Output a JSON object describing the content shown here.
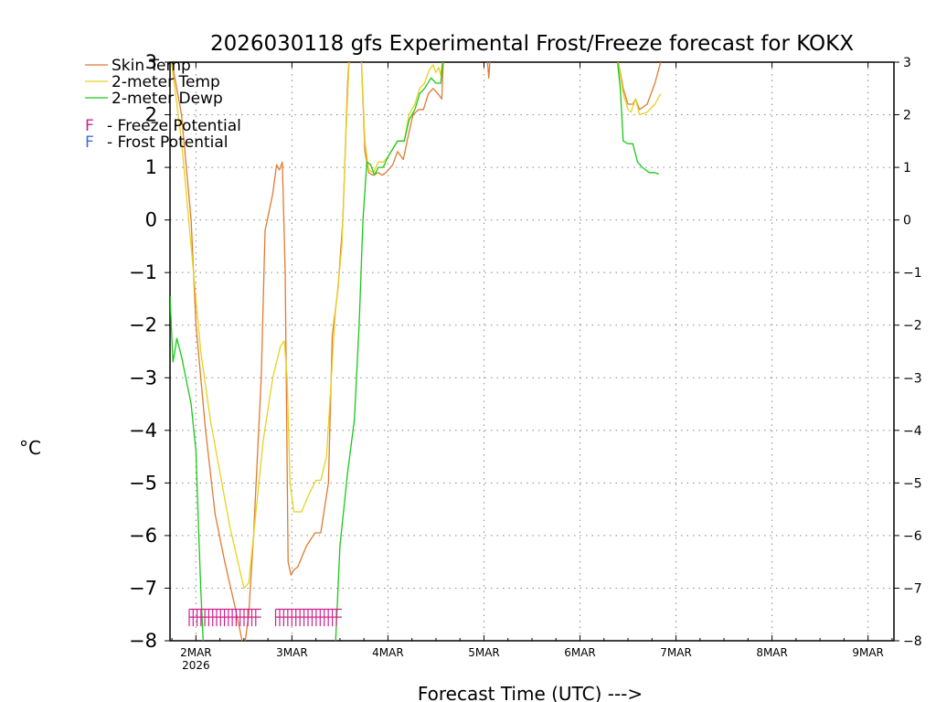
{
  "chart_data": {
    "type": "line",
    "title": "2026030118 gfs Experimental Frost/Freeze forecast for KOKX",
    "ylabel": "°C",
    "xlabel": "Forecast Time (UTC) --->",
    "ylim": [
      -8,
      3
    ],
    "xlim": [
      -0.27,
      7.27
    ],
    "y_ticks": [
      3,
      2,
      1,
      0,
      -1,
      -2,
      -3,
      -4,
      -5,
      -6,
      -7,
      -8
    ],
    "x_ticks": [
      {
        "x": 0,
        "label": "2MAR",
        "sub": "2026"
      },
      {
        "x": 1,
        "label": "3MAR",
        "sub": ""
      },
      {
        "x": 2,
        "label": "4MAR",
        "sub": ""
      },
      {
        "x": 3,
        "label": "5MAR",
        "sub": ""
      },
      {
        "x": 4,
        "label": "6MAR",
        "sub": ""
      },
      {
        "x": 5,
        "label": "7MAR",
        "sub": ""
      },
      {
        "x": 6,
        "label": "8MAR",
        "sub": ""
      },
      {
        "x": 7,
        "label": "9MAR",
        "sub": ""
      }
    ],
    "grid": true,
    "legend": [
      {
        "name": "Skin Temp",
        "color": "#e07b30"
      },
      {
        "name": "2-meter Temp",
        "color": "#e6d21e"
      },
      {
        "name": "2-meter Dewp",
        "color": "#19c919"
      }
    ],
    "potential_legend": [
      {
        "marker": "F",
        "text": "- Freeze Potential",
        "color": "#d0208c"
      },
      {
        "marker": "F",
        "text": "- Frost Potential",
        "color": "#4169e1"
      }
    ],
    "series": [
      {
        "name": "Skin Temp",
        "color": "#e07b30",
        "points": [
          [
            -0.27,
            3.2
          ],
          [
            -0.22,
            2.7
          ],
          [
            -0.15,
            2.0
          ],
          [
            -0.05,
            0.0
          ],
          [
            0.0,
            -2.0
          ],
          [
            0.1,
            -4.0
          ],
          [
            0.2,
            -5.6
          ],
          [
            0.3,
            -6.5
          ],
          [
            0.4,
            -7.3
          ],
          [
            0.47,
            -7.9
          ],
          [
            0.5,
            -8.2
          ],
          [
            0.55,
            -7.5
          ],
          [
            0.6,
            -6.0
          ],
          [
            0.68,
            -3.0
          ],
          [
            0.72,
            -0.2
          ],
          [
            0.8,
            0.5
          ],
          [
            0.84,
            1.05
          ],
          [
            0.87,
            0.95
          ],
          [
            0.9,
            1.1
          ],
          [
            0.93,
            -1.0
          ],
          [
            0.96,
            -6.5
          ],
          [
            0.99,
            -6.75
          ],
          [
            1.02,
            -6.65
          ],
          [
            1.06,
            -6.6
          ],
          [
            1.15,
            -6.2
          ],
          [
            1.24,
            -5.95
          ],
          [
            1.3,
            -5.95
          ],
          [
            1.38,
            -5.0
          ],
          [
            1.42,
            -2.2
          ],
          [
            1.48,
            -1.3
          ],
          [
            1.53,
            0.0
          ],
          [
            1.58,
            2.6
          ],
          [
            1.6,
            3.2
          ],
          [
            1.66,
            3.2
          ],
          [
            1.72,
            3.2
          ],
          [
            1.76,
            1.3
          ],
          [
            1.8,
            0.9
          ],
          [
            1.84,
            0.85
          ],
          [
            1.9,
            0.9
          ],
          [
            1.94,
            0.85
          ],
          [
            1.98,
            0.9
          ],
          [
            2.05,
            1.05
          ],
          [
            2.1,
            1.3
          ],
          [
            2.16,
            1.15
          ],
          [
            2.2,
            1.5
          ],
          [
            2.26,
            2.0
          ],
          [
            2.32,
            2.1
          ],
          [
            2.37,
            2.1
          ],
          [
            2.42,
            2.4
          ],
          [
            2.47,
            2.5
          ],
          [
            2.52,
            2.4
          ],
          [
            2.56,
            2.3
          ],
          [
            2.58,
            3.2
          ],
          [
            3.03,
            3.2
          ],
          [
            3.05,
            2.7
          ],
          [
            3.07,
            3.2
          ],
          [
            4.38,
            3.2
          ],
          [
            4.45,
            2.5
          ],
          [
            4.5,
            2.2
          ],
          [
            4.55,
            2.2
          ],
          [
            4.58,
            2.3
          ],
          [
            4.62,
            2.1
          ],
          [
            4.7,
            2.2
          ],
          [
            4.78,
            2.6
          ],
          [
            4.84,
            3.0
          ]
        ]
      },
      {
        "name": "2-meter Temp",
        "color": "#e6d21e",
        "points": [
          [
            -0.27,
            3.2
          ],
          [
            -0.22,
            2.5
          ],
          [
            -0.15,
            1.5
          ],
          [
            -0.05,
            -0.5
          ],
          [
            0.05,
            -2.5
          ],
          [
            0.15,
            -3.8
          ],
          [
            0.25,
            -4.8
          ],
          [
            0.35,
            -5.8
          ],
          [
            0.45,
            -6.6
          ],
          [
            0.5,
            -7.0
          ],
          [
            0.55,
            -6.9
          ],
          [
            0.6,
            -6.0
          ],
          [
            0.7,
            -4.2
          ],
          [
            0.8,
            -3.0
          ],
          [
            0.88,
            -2.4
          ],
          [
            0.92,
            -2.3
          ],
          [
            0.95,
            -3.0
          ],
          [
            0.98,
            -5.0
          ],
          [
            1.02,
            -5.55
          ],
          [
            1.1,
            -5.55
          ],
          [
            1.18,
            -5.2
          ],
          [
            1.25,
            -4.95
          ],
          [
            1.3,
            -4.95
          ],
          [
            1.36,
            -4.5
          ],
          [
            1.45,
            -1.8
          ],
          [
            1.52,
            -0.5
          ],
          [
            1.56,
            1.5
          ],
          [
            1.6,
            3.2
          ],
          [
            1.67,
            3.2
          ],
          [
            1.72,
            3.2
          ],
          [
            1.76,
            1.5
          ],
          [
            1.8,
            0.95
          ],
          [
            1.85,
            0.9
          ],
          [
            1.9,
            1.1
          ],
          [
            1.95,
            1.1
          ],
          [
            2.0,
            1.2
          ],
          [
            2.05,
            1.35
          ],
          [
            2.1,
            1.5
          ],
          [
            2.17,
            1.5
          ],
          [
            2.22,
            2.0
          ],
          [
            2.28,
            2.2
          ],
          [
            2.33,
            2.5
          ],
          [
            2.38,
            2.6
          ],
          [
            2.43,
            2.85
          ],
          [
            2.47,
            2.95
          ],
          [
            2.5,
            2.8
          ],
          [
            2.53,
            2.9
          ],
          [
            2.55,
            2.75
          ],
          [
            2.58,
            3.2
          ],
          [
            4.38,
            3.2
          ],
          [
            4.45,
            2.4
          ],
          [
            4.5,
            2.1
          ],
          [
            4.53,
            2.05
          ],
          [
            4.58,
            2.3
          ],
          [
            4.62,
            2.0
          ],
          [
            4.7,
            2.05
          ],
          [
            4.78,
            2.2
          ],
          [
            4.84,
            2.4
          ]
        ]
      },
      {
        "name": "2-meter Dewp",
        "color": "#19c919",
        "points": [
          [
            -0.27,
            -1.45
          ],
          [
            -0.24,
            -2.7
          ],
          [
            -0.22,
            -2.5
          ],
          [
            -0.2,
            -2.25
          ],
          [
            -0.15,
            -2.6
          ],
          [
            -0.05,
            -3.5
          ],
          [
            0.0,
            -4.4
          ],
          [
            0.02,
            -5.5
          ],
          [
            0.05,
            -7.0
          ],
          [
            0.08,
            -8.2
          ],
          [
            1.45,
            -8.2
          ],
          [
            1.5,
            -6.2
          ],
          [
            1.58,
            -4.8
          ],
          [
            1.65,
            -3.8
          ],
          [
            1.7,
            -2.0
          ],
          [
            1.74,
            0.0
          ],
          [
            1.78,
            1.1
          ],
          [
            1.82,
            1.05
          ],
          [
            1.86,
            0.85
          ],
          [
            1.9,
            1.0
          ],
          [
            1.95,
            1.0
          ],
          [
            2.0,
            1.2
          ],
          [
            2.05,
            1.35
          ],
          [
            2.1,
            1.5
          ],
          [
            2.17,
            1.5
          ],
          [
            2.22,
            1.9
          ],
          [
            2.28,
            2.1
          ],
          [
            2.33,
            2.4
          ],
          [
            2.38,
            2.5
          ],
          [
            2.45,
            2.7
          ],
          [
            2.5,
            2.6
          ],
          [
            2.55,
            2.6
          ],
          [
            2.58,
            3.2
          ],
          [
            4.38,
            3.2
          ],
          [
            4.42,
            2.5
          ],
          [
            4.45,
            1.5
          ],
          [
            4.5,
            1.45
          ],
          [
            4.55,
            1.45
          ],
          [
            4.6,
            1.1
          ],
          [
            4.65,
            1.0
          ],
          [
            4.72,
            0.9
          ],
          [
            4.78,
            0.9
          ],
          [
            4.82,
            0.87
          ]
        ]
      }
    ],
    "freeze_potential_runs": [
      {
        "x_start": -0.07,
        "x_end": 0.68,
        "count": 18
      },
      {
        "x_start": 0.83,
        "x_end": 1.52,
        "count": 16
      }
    ]
  }
}
